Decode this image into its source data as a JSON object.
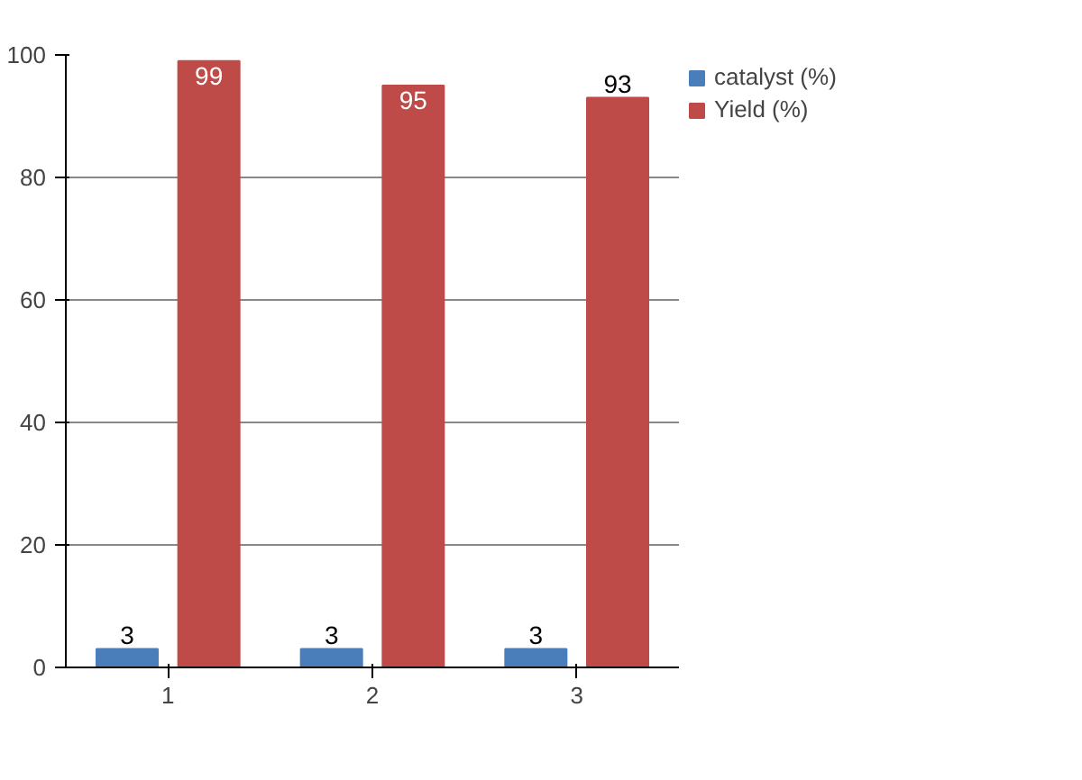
{
  "chart_data": {
    "type": "bar",
    "categories": [
      "1",
      "2",
      "3"
    ],
    "series": [
      {
        "name": "catalyst (%)",
        "color": "#4a7ebb",
        "values": [
          3,
          3,
          3
        ]
      },
      {
        "name": "Yield (%)",
        "color": "#be4b48",
        "values": [
          99,
          95,
          93
        ]
      }
    ],
    "ylim": [
      0,
      100
    ],
    "yticks": [
      0,
      20,
      40,
      60,
      80,
      100
    ],
    "grid": "y",
    "legend": "top right",
    "data_labels": true
  }
}
